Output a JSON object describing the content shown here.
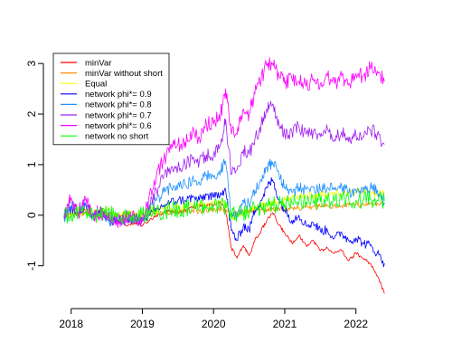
{
  "chart_data": {
    "type": "line",
    "title": "",
    "xlabel": "",
    "ylabel": "",
    "xlim": [
      2017.75,
      2022.6
    ],
    "ylim": [
      -1.65,
      3.2
    ],
    "grid": false,
    "legend_position": "top-left",
    "x_ticks": [
      {
        "value": 2018,
        "label": "2018"
      },
      {
        "value": 2019,
        "label": "2019"
      },
      {
        "value": 2020,
        "label": "2020"
      },
      {
        "value": 2021,
        "label": "2021"
      },
      {
        "value": 2022,
        "label": "2022"
      }
    ],
    "y_ticks": [
      {
        "value": -1,
        "label": "-1"
      },
      {
        "value": 0,
        "label": "0"
      },
      {
        "value": 1,
        "label": "1"
      },
      {
        "value": 2,
        "label": "2"
      },
      {
        "value": 3,
        "label": "3"
      }
    ],
    "x": [
      2017.9,
      2018.0,
      2018.1,
      2018.2,
      2018.3,
      2018.4,
      2018.5,
      2018.6,
      2018.7,
      2018.8,
      2018.9,
      2019.0,
      2019.1,
      2019.2,
      2019.3,
      2019.4,
      2019.5,
      2019.6,
      2019.7,
      2019.8,
      2019.9,
      2020.0,
      2020.1,
      2020.17,
      2020.25,
      2020.33,
      2020.42,
      2020.5,
      2020.58,
      2020.67,
      2020.75,
      2020.83,
      2020.92,
      2021.0,
      2021.1,
      2021.2,
      2021.3,
      2021.4,
      2021.5,
      2021.6,
      2021.7,
      2021.8,
      2021.9,
      2022.0,
      2022.1,
      2022.2,
      2022.3,
      2022.4
    ],
    "series": [
      {
        "name": "minVar",
        "color": "#ff0000",
        "values": [
          -0.05,
          0.05,
          0.0,
          0.1,
          0.0,
          -0.05,
          0.0,
          -0.1,
          -0.15,
          -0.2,
          -0.15,
          -0.2,
          -0.1,
          0.0,
          0.05,
          0.1,
          0.05,
          0.1,
          0.15,
          0.2,
          0.2,
          0.2,
          0.25,
          0.1,
          -0.65,
          -0.85,
          -0.6,
          -0.8,
          -0.5,
          -0.3,
          -0.1,
          0.05,
          -0.2,
          -0.35,
          -0.55,
          -0.4,
          -0.6,
          -0.5,
          -0.7,
          -0.65,
          -0.75,
          -0.7,
          -0.9,
          -0.75,
          -0.85,
          -0.95,
          -1.2,
          -1.55
        ]
      },
      {
        "name": "minVar without short",
        "color": "#ff8c00",
        "values": [
          -0.02,
          0.0,
          0.02,
          0.03,
          0.0,
          0.02,
          0.03,
          0.01,
          0.0,
          0.01,
          0.0,
          0.01,
          0.02,
          0.03,
          0.05,
          0.06,
          0.07,
          0.08,
          0.08,
          0.09,
          0.1,
          0.1,
          0.12,
          0.1,
          0.02,
          0.05,
          0.07,
          0.08,
          0.1,
          0.1,
          0.11,
          0.12,
          0.12,
          0.13,
          0.14,
          0.15,
          0.16,
          0.16,
          0.17,
          0.18,
          0.18,
          0.19,
          0.2,
          0.2,
          0.21,
          0.22,
          0.24,
          0.25
        ]
      },
      {
        "name": "Equal",
        "color": "#ffff00",
        "values": [
          -0.02,
          0.05,
          0.08,
          0.1,
          0.05,
          0.08,
          0.1,
          0.05,
          0.0,
          0.03,
          0.02,
          0.05,
          0.08,
          0.1,
          0.12,
          0.15,
          0.15,
          0.18,
          0.2,
          0.2,
          0.22,
          0.23,
          0.25,
          0.2,
          -0.05,
          0.0,
          0.05,
          0.1,
          0.15,
          0.2,
          0.2,
          0.25,
          0.25,
          0.3,
          0.35,
          0.38,
          0.4,
          0.38,
          0.42,
          0.4,
          0.45,
          0.42,
          0.45,
          0.47,
          0.45,
          0.48,
          0.4,
          0.45
        ]
      },
      {
        "name": "network phi*= 0.9",
        "color": "#0000ff",
        "values": [
          -0.05,
          0.15,
          0.05,
          0.2,
          0.0,
          0.05,
          -0.05,
          -0.15,
          -0.1,
          -0.1,
          -0.05,
          -0.1,
          0.0,
          0.1,
          0.2,
          0.25,
          0.3,
          0.3,
          0.35,
          0.3,
          0.4,
          0.35,
          0.45,
          0.5,
          -0.3,
          -0.5,
          -0.2,
          -0.3,
          0.1,
          0.3,
          0.55,
          0.7,
          0.3,
          0.1,
          -0.1,
          0.0,
          -0.2,
          -0.15,
          -0.3,
          -0.3,
          -0.45,
          -0.35,
          -0.5,
          -0.45,
          -0.55,
          -0.6,
          -0.75,
          -0.95
        ]
      },
      {
        "name": "network phi*= 0.8",
        "color": "#1e90ff",
        "values": [
          -0.05,
          0.2,
          0.05,
          0.25,
          0.0,
          0.05,
          -0.05,
          -0.15,
          -0.1,
          -0.1,
          -0.05,
          -0.1,
          0.1,
          0.3,
          0.45,
          0.55,
          0.6,
          0.6,
          0.7,
          0.65,
          0.8,
          0.75,
          0.9,
          1.05,
          0.05,
          -0.05,
          0.3,
          0.2,
          0.5,
          0.7,
          0.95,
          1.05,
          0.8,
          0.55,
          0.45,
          0.55,
          0.5,
          0.55,
          0.5,
          0.55,
          0.5,
          0.55,
          0.45,
          0.5,
          0.45,
          0.55,
          0.5,
          0.25
        ]
      },
      {
        "name": "network phi*= 0.7",
        "color": "#a020f0",
        "values": [
          -0.05,
          0.25,
          0.05,
          0.3,
          0.0,
          0.05,
          -0.05,
          -0.1,
          -0.1,
          -0.1,
          -0.05,
          -0.1,
          0.2,
          0.5,
          0.75,
          0.9,
          0.95,
          1.0,
          1.1,
          1.05,
          1.2,
          1.2,
          1.4,
          1.9,
          0.8,
          0.9,
          1.3,
          1.2,
          1.5,
          1.8,
          2.1,
          2.2,
          1.8,
          1.6,
          1.65,
          1.75,
          1.6,
          1.65,
          1.55,
          1.7,
          1.5,
          1.65,
          1.45,
          1.6,
          1.55,
          1.7,
          1.6,
          1.4
        ]
      },
      {
        "name": "network phi*= 0.6",
        "color": "#ff00ff",
        "values": [
          -0.05,
          0.35,
          0.05,
          0.35,
          0.0,
          0.05,
          -0.05,
          -0.1,
          -0.1,
          -0.05,
          0.0,
          -0.1,
          0.4,
          0.8,
          1.1,
          1.3,
          1.4,
          1.45,
          1.6,
          1.55,
          1.8,
          1.8,
          2.0,
          2.5,
          1.6,
          1.6,
          2.1,
          2.0,
          2.4,
          2.7,
          3.0,
          3.0,
          2.75,
          2.6,
          2.7,
          2.65,
          2.55,
          2.7,
          2.6,
          2.75,
          2.6,
          2.75,
          2.6,
          2.8,
          2.75,
          2.9,
          2.85,
          2.65
        ]
      },
      {
        "name": "network no short",
        "color": "#00ff00",
        "values": [
          -0.03,
          0.05,
          0.03,
          0.06,
          0.0,
          0.02,
          0.03,
          0.0,
          -0.02,
          0.0,
          0.0,
          0.02,
          0.05,
          0.07,
          0.09,
          0.11,
          0.12,
          0.13,
          0.15,
          0.16,
          0.18,
          0.18,
          0.2,
          0.15,
          0.0,
          0.02,
          0.05,
          0.08,
          0.12,
          0.15,
          0.18,
          0.2,
          0.2,
          0.22,
          0.24,
          0.25,
          0.26,
          0.25,
          0.27,
          0.28,
          0.28,
          0.29,
          0.3,
          0.3,
          0.3,
          0.32,
          0.3,
          0.28
        ]
      }
    ]
  }
}
